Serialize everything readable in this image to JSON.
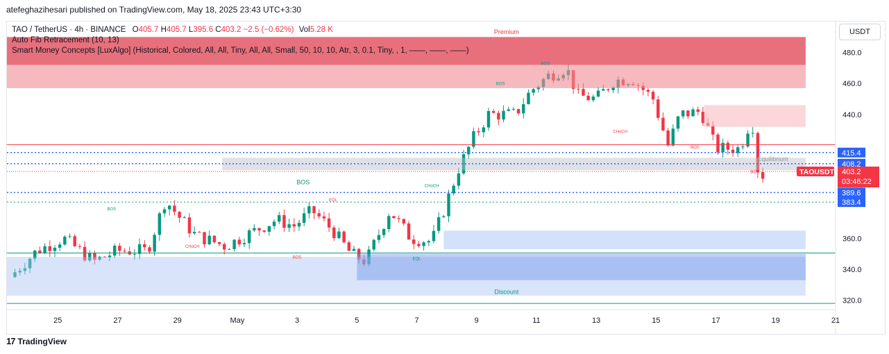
{
  "publisher": "atefeghazihesari published on TradingView.com, May 18, 2025 23:43 UTC+3:30",
  "header": {
    "symbol": "TAO / TetherUS · 4h · BINANCE",
    "o_label": "O",
    "o": "405.7",
    "h_label": "H",
    "h": "405.7",
    "l_label": "L",
    "l": "395.6",
    "c_label": "C",
    "c": "403.2",
    "change": "−2.5 (−0.62%)",
    "vol_label": "Vol",
    "vol": "5.28 K"
  },
  "indicators": [
    "Auto Fib Retracement (10, 13)",
    "Smart Money Concepts [LuxAlgo] (Historical, Colored, All, All, Tiny, All, All, Small, 50, 10, 10, Atr, 3, 0.1, Tiny, , 1, ——, ——, ——)"
  ],
  "currency_button": "USDT",
  "footer": {
    "brand": "TradingView",
    "logo": "17"
  },
  "colors": {
    "up": "#089981",
    "down": "#f23645",
    "blue": "#2962ff"
  },
  "chart_data": {
    "type": "candlestick",
    "ylim": [
      314,
      500
    ],
    "yticks": [
      {
        "v": 320,
        "t": "320.0"
      },
      {
        "v": 340,
        "t": "340.0"
      },
      {
        "v": 360,
        "t": "360.0"
      },
      {
        "v": 440,
        "t": "440.0"
      },
      {
        "v": 460,
        "t": "460.0"
      },
      {
        "v": 480,
        "t": "480.0"
      }
    ],
    "xlim": [
      23.3,
      51.0
    ],
    "xticks": [
      {
        "v": 25,
        "t": "25"
      },
      {
        "v": 27,
        "t": "27"
      },
      {
        "v": 29,
        "t": "29"
      },
      {
        "v": 31,
        "t": "May"
      },
      {
        "v": 33,
        "t": "3"
      },
      {
        "v": 35,
        "t": "5"
      },
      {
        "v": 37,
        "t": "7"
      },
      {
        "v": 39,
        "t": "9"
      },
      {
        "v": 41,
        "t": "11"
      },
      {
        "v": 43,
        "t": "13"
      },
      {
        "v": 45,
        "t": "15"
      },
      {
        "v": 47,
        "t": "17"
      },
      {
        "v": 49,
        "t": "19"
      },
      {
        "v": 51,
        "t": "21"
      }
    ],
    "price_labels": [
      {
        "v": 415.4,
        "t": "415.4",
        "color": "#2962ff"
      },
      {
        "v": 408.2,
        "t": "408.2",
        "color": "#2962ff"
      },
      {
        "v": 389.6,
        "t": "389.6",
        "color": "#2962ff"
      },
      {
        "v": 383.4,
        "t": "383.4",
        "color": "#2962ff"
      }
    ],
    "last_price": {
      "symbol": "TAOUSDT",
      "price": "403.2",
      "countdown": "03:46:22",
      "v": 403.2
    },
    "zones": [
      {
        "x0": 23.3,
        "x1": 50.0,
        "y0": 472,
        "y1": 490,
        "color": "#e04050",
        "opacity": 0.75
      },
      {
        "x0": 23.3,
        "x1": 50.0,
        "y0": 457,
        "y1": 472,
        "color": "#ef8a93",
        "opacity": 0.6
      },
      {
        "x0": 30.5,
        "x1": 50.0,
        "y0": 404,
        "y1": 412,
        "color": "#b8bcc8",
        "opacity": 0.45
      },
      {
        "x0": 46.6,
        "x1": 50.0,
        "y0": 432,
        "y1": 446,
        "color": "#f7b6bb",
        "opacity": 0.55
      },
      {
        "x0": 23.3,
        "x1": 50.0,
        "y0": 323,
        "y1": 348,
        "color": "#aac4f5",
        "opacity": 0.45
      },
      {
        "x0": 37.9,
        "x1": 50.0,
        "y0": 353,
        "y1": 365,
        "color": "#aac4f5",
        "opacity": 0.5
      },
      {
        "x0": 35.0,
        "x1": 50.0,
        "y0": 333,
        "y1": 350,
        "color": "#6f94e8",
        "opacity": 0.45
      }
    ],
    "lines": [
      {
        "y": 420.5,
        "color": "#f23645",
        "dash": "",
        "width": 1
      },
      {
        "y": 415.4,
        "color": "#2962ff",
        "dash": "2,3",
        "width": 1.5
      },
      {
        "y": 408.2,
        "color": "#2962ff",
        "dash": "2,3",
        "width": 1.5
      },
      {
        "y": 389.6,
        "color": "#2962ff",
        "dash": "2,3",
        "width": 1.5
      },
      {
        "y": 383.4,
        "color": "#089981",
        "dash": "2,3",
        "width": 1
      },
      {
        "y": 403.2,
        "color": "#f23645",
        "dash": "1,2",
        "width": 1
      },
      {
        "y": 318,
        "color": "#089981",
        "dash": "",
        "width": 1
      },
      {
        "y": 350.5,
        "color": "#089981",
        "dash": "",
        "width": 1
      }
    ],
    "labels": [
      {
        "t": "Premium",
        "x": 40.0,
        "y": 492,
        "color": "#f23645",
        "size": 9
      },
      {
        "t": "Equilibrium",
        "x": 48.9,
        "y": 410,
        "color": "#9598a1",
        "size": 9
      },
      {
        "t": "Discount",
        "x": 40.0,
        "y": 324,
        "color": "#089981",
        "size": 9
      },
      {
        "t": "BOS",
        "x": 33.2,
        "y": 395,
        "color": "#089981",
        "size": 9
      },
      {
        "t": "BOS",
        "x": 26.8,
        "y": 378,
        "color": "#089981",
        "size": 6
      },
      {
        "t": "CHoCH",
        "x": 29.5,
        "y": 354,
        "color": "#f23645",
        "size": 6
      },
      {
        "t": "BOS",
        "x": 33.0,
        "y": 347,
        "color": "#f23645",
        "size": 6
      },
      {
        "t": "EQL",
        "x": 34.2,
        "y": 384,
        "color": "#f23645",
        "size": 6
      },
      {
        "t": "CHoCH",
        "x": 37.5,
        "y": 393,
        "color": "#089981",
        "size": 6
      },
      {
        "t": "EQL",
        "x": 37.0,
        "y": 346,
        "color": "#089981",
        "size": 6
      },
      {
        "t": "BOS",
        "x": 39.8,
        "y": 459,
        "color": "#089981",
        "size": 6
      },
      {
        "t": "BOS",
        "x": 41.3,
        "y": 472,
        "color": "#089981",
        "size": 6
      },
      {
        "t": "CHoCH",
        "x": 43.8,
        "y": 428,
        "color": "#f23645",
        "size": 6
      },
      {
        "t": "BOS",
        "x": 46.3,
        "y": 418,
        "color": "#f23645",
        "size": 6
      },
      {
        "t": "BOS",
        "x": 48.3,
        "y": 402,
        "color": "#f23645",
        "size": 6
      }
    ],
    "candles": []
  }
}
